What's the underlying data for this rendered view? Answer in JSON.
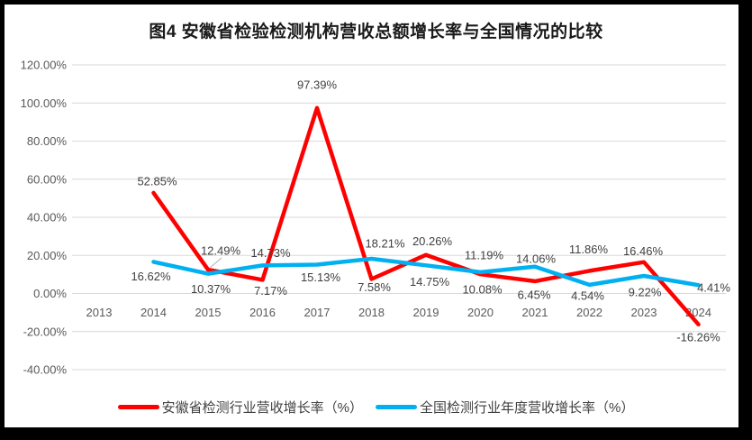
{
  "chart_data": {
    "type": "line",
    "title": "图4  安徽省检验检测机构营收总额增长率与全国情况的比较",
    "categories": [
      "2013",
      "2014",
      "2015",
      "2016",
      "2017",
      "2018",
      "2019",
      "2020",
      "2021",
      "2022",
      "2023",
      "2024"
    ],
    "series": [
      {
        "name": "安徽省检测行业营收增长率（%）",
        "color": "#FF0000",
        "values": [
          null,
          52.85,
          12.49,
          7.17,
          97.39,
          7.58,
          20.26,
          10.08,
          6.45,
          11.86,
          16.46,
          -16.26
        ]
      },
      {
        "name": "全国检测行业年度营收增长率（%）",
        "color": "#00B0F0",
        "values": [
          null,
          16.62,
          10.37,
          14.73,
          15.13,
          18.21,
          14.75,
          11.19,
          14.06,
          4.54,
          9.22,
          4.41
        ]
      }
    ],
    "ylim": [
      -40,
      120
    ],
    "ytick_step": 20,
    "y_tick_labels": [
      "120.00%",
      "100.00%",
      "80.00%",
      "60.00%",
      "40.00%",
      "20.00%",
      "0.00%",
      "-20.00%",
      "-40.00%"
    ],
    "grid": true,
    "data_labels": true,
    "label_format": "0.00%",
    "legend_position": "bottom",
    "colors": {
      "gridline": "#d9d9d9",
      "axis_text": "#595959",
      "data_label_text": "#3f3f3f",
      "leader_line": "#bfbfbf",
      "frame_border": "#000000",
      "background": "#ffffff"
    }
  }
}
